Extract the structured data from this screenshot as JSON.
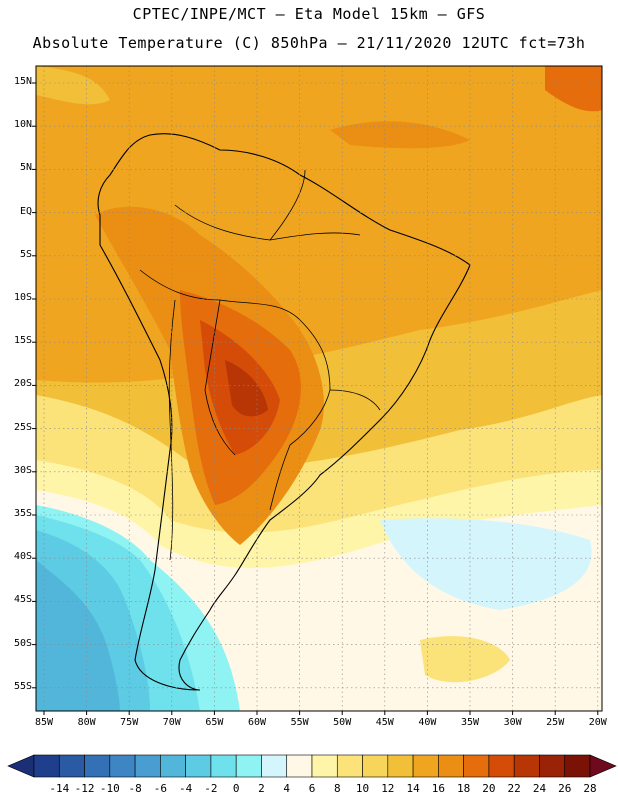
{
  "header": {
    "line1": "CPTEC/INPE/MCT –  Eta Model 15km – GFS",
    "line2": "Absolute Temperature (C) 850hPa – 21/11/2020 12UTC fct=73h"
  },
  "map": {
    "lat_labels": [
      "15N",
      "10N",
      "5N",
      "EQ",
      "5S",
      "10S",
      "15S",
      "20S",
      "25S",
      "30S",
      "35S",
      "40S",
      "45S",
      "50S",
      "55S"
    ],
    "lon_labels": [
      "85W",
      "80W",
      "75W",
      "70W",
      "65W",
      "60W",
      "55W",
      "50W",
      "45W",
      "40W",
      "35W",
      "30W",
      "25W",
      "20W"
    ]
  },
  "colorbar": {
    "labels": [
      "-14",
      "-12",
      "-10",
      "-8",
      "-6",
      "-4",
      "-2",
      "0",
      "2",
      "4",
      "6",
      "8",
      "10",
      "12",
      "14",
      "16",
      "18",
      "20",
      "22",
      "24",
      "26",
      "28"
    ],
    "colors": [
      "#1f3f8c",
      "#2a5aa3",
      "#3370b5",
      "#3e86c3",
      "#4a9dd0",
      "#52b6da",
      "#5ccbe3",
      "#6ee1ec",
      "#8ff3f4",
      "#d4f5fb",
      "#fff8e6",
      "#fff5a8",
      "#fbe37a",
      "#f6d55a",
      "#f2bf38",
      "#efa51f",
      "#eb8e14",
      "#e56d0c",
      "#d44c08",
      "#b83506",
      "#9a2206",
      "#7a1305"
    ],
    "under_color": "#1a2f75",
    "over_color": "#6d0a1e"
  }
}
